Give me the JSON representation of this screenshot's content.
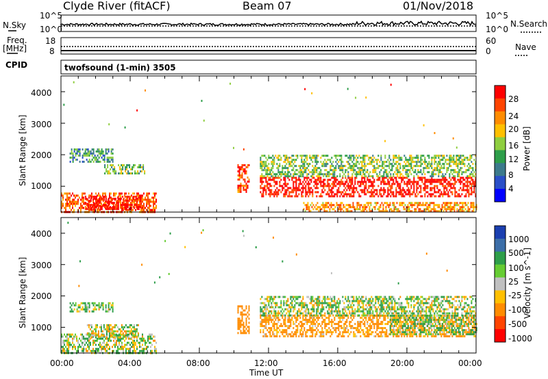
{
  "header": {
    "station": "Clyde River (fitACF)",
    "beam": "Beam 07",
    "date": "01/Nov/2018"
  },
  "top_panel": {
    "nsky_label": "N.Sky",
    "nsky_ticks": [
      "10^5",
      "10^0"
    ],
    "nsearch_label": "N.Search",
    "nsearch_ticks": [
      "10^5",
      "10^0"
    ],
    "freq_label": "Freq.",
    "freq_unit": "[MHz]",
    "freq_ticks": [
      "18",
      "8"
    ],
    "nave_label": "Nave",
    "nave_ticks": [
      "60",
      "0"
    ],
    "cpid_label": "CPID",
    "cpid_text": "twofsound (1-min) 3505"
  },
  "x_axis": {
    "label": "Time UT",
    "ticks": [
      "00:00",
      "04:00",
      "08:00",
      "12:00",
      "16:00",
      "20:00",
      "00:00"
    ]
  },
  "power_panel": {
    "ylabel": "Slant Range [km]",
    "yticks": [
      "4000",
      "3000",
      "2000",
      "1000"
    ],
    "cbar_label": "Power [dB]",
    "cbar_ticks": [
      "28",
      "24",
      "20",
      "16",
      "12",
      "8",
      "4"
    ],
    "cbar_colors": [
      "#ff0000",
      "#ff4400",
      "#ff8c00",
      "#ffc000",
      "#8fce40",
      "#2e9e4a",
      "#3c7a8c",
      "#2a4fc8",
      "#0000ff"
    ]
  },
  "velocity_panel": {
    "ylabel": "Slant Range [km]",
    "yticks": [
      "4000",
      "3000",
      "2000",
      "1000"
    ],
    "cbar_label": "Velocity [m s^-1]",
    "cbar_ticks": [
      "1000",
      "500",
      "100",
      "25",
      "-25",
      "-100",
      "-500",
      "-1000"
    ],
    "cbar_colors": [
      "#1b3fb0",
      "#3c6ea8",
      "#2e9e4a",
      "#66cc33",
      "#c0c0c0",
      "#ffc000",
      "#ff8c00",
      "#ff4400",
      "#ff0000"
    ]
  },
  "chart_data": [
    {
      "type": "heatmap",
      "title": "Power",
      "xlabel": "Time UT",
      "ylabel": "Slant Range [km]",
      "xlim": [
        "00:00",
        "24:00"
      ],
      "ylim": [
        180,
        4500
      ],
      "colorbar": {
        "label": "Power [dB]",
        "range": [
          0,
          30
        ]
      },
      "regions": [
        {
          "t0": 0.0,
          "t1": 5.5,
          "r0": 200,
          "r1": 800,
          "value": 26
        },
        {
          "t0": 1.3,
          "t1": 4.6,
          "r0": 300,
          "r1": 700,
          "value": 30
        },
        {
          "t0": 0.5,
          "t1": 3.0,
          "r0": 1800,
          "r1": 2200,
          "value": 10
        },
        {
          "t0": 2.5,
          "t1": 4.8,
          "r0": 1400,
          "r1": 1700,
          "value": 14
        },
        {
          "t0": 10.2,
          "t1": 10.9,
          "r0": 800,
          "r1": 1700,
          "value": 26
        },
        {
          "t0": 11.5,
          "t1": 24.0,
          "r0": 700,
          "r1": 1300,
          "value": 30
        },
        {
          "t0": 11.5,
          "t1": 24.0,
          "r0": 1300,
          "r1": 2000,
          "value": 14
        },
        {
          "t0": 14.0,
          "t1": 24.0,
          "r0": 200,
          "r1": 500,
          "value": 22
        }
      ]
    },
    {
      "type": "heatmap",
      "title": "Velocity",
      "xlabel": "Time UT",
      "ylabel": "Slant Range [km]",
      "xlim": [
        "00:00",
        "24:00"
      ],
      "ylim": [
        180,
        4500
      ],
      "colorbar": {
        "label": "Velocity [m s^-1]",
        "range": [
          -1000,
          1000
        ]
      },
      "regions": [
        {
          "t0": 0.0,
          "t1": 5.5,
          "r0": 200,
          "r1": 800,
          "value": 60
        },
        {
          "t0": 1.5,
          "t1": 4.5,
          "r0": 700,
          "r1": 1100,
          "value": 0
        },
        {
          "t0": 0.5,
          "t1": 3.0,
          "r0": 1500,
          "r1": 1800,
          "value": 80
        },
        {
          "t0": 10.2,
          "t1": 10.9,
          "r0": 800,
          "r1": 1700,
          "value": -300
        },
        {
          "t0": 11.5,
          "t1": 24.0,
          "r0": 700,
          "r1": 1400,
          "value": -200
        },
        {
          "t0": 11.5,
          "t1": 24.0,
          "r0": 1400,
          "r1": 2000,
          "value": 50
        },
        {
          "t0": 19.0,
          "t1": 24.0,
          "r0": 800,
          "r1": 1400,
          "value": 100
        }
      ]
    }
  ]
}
